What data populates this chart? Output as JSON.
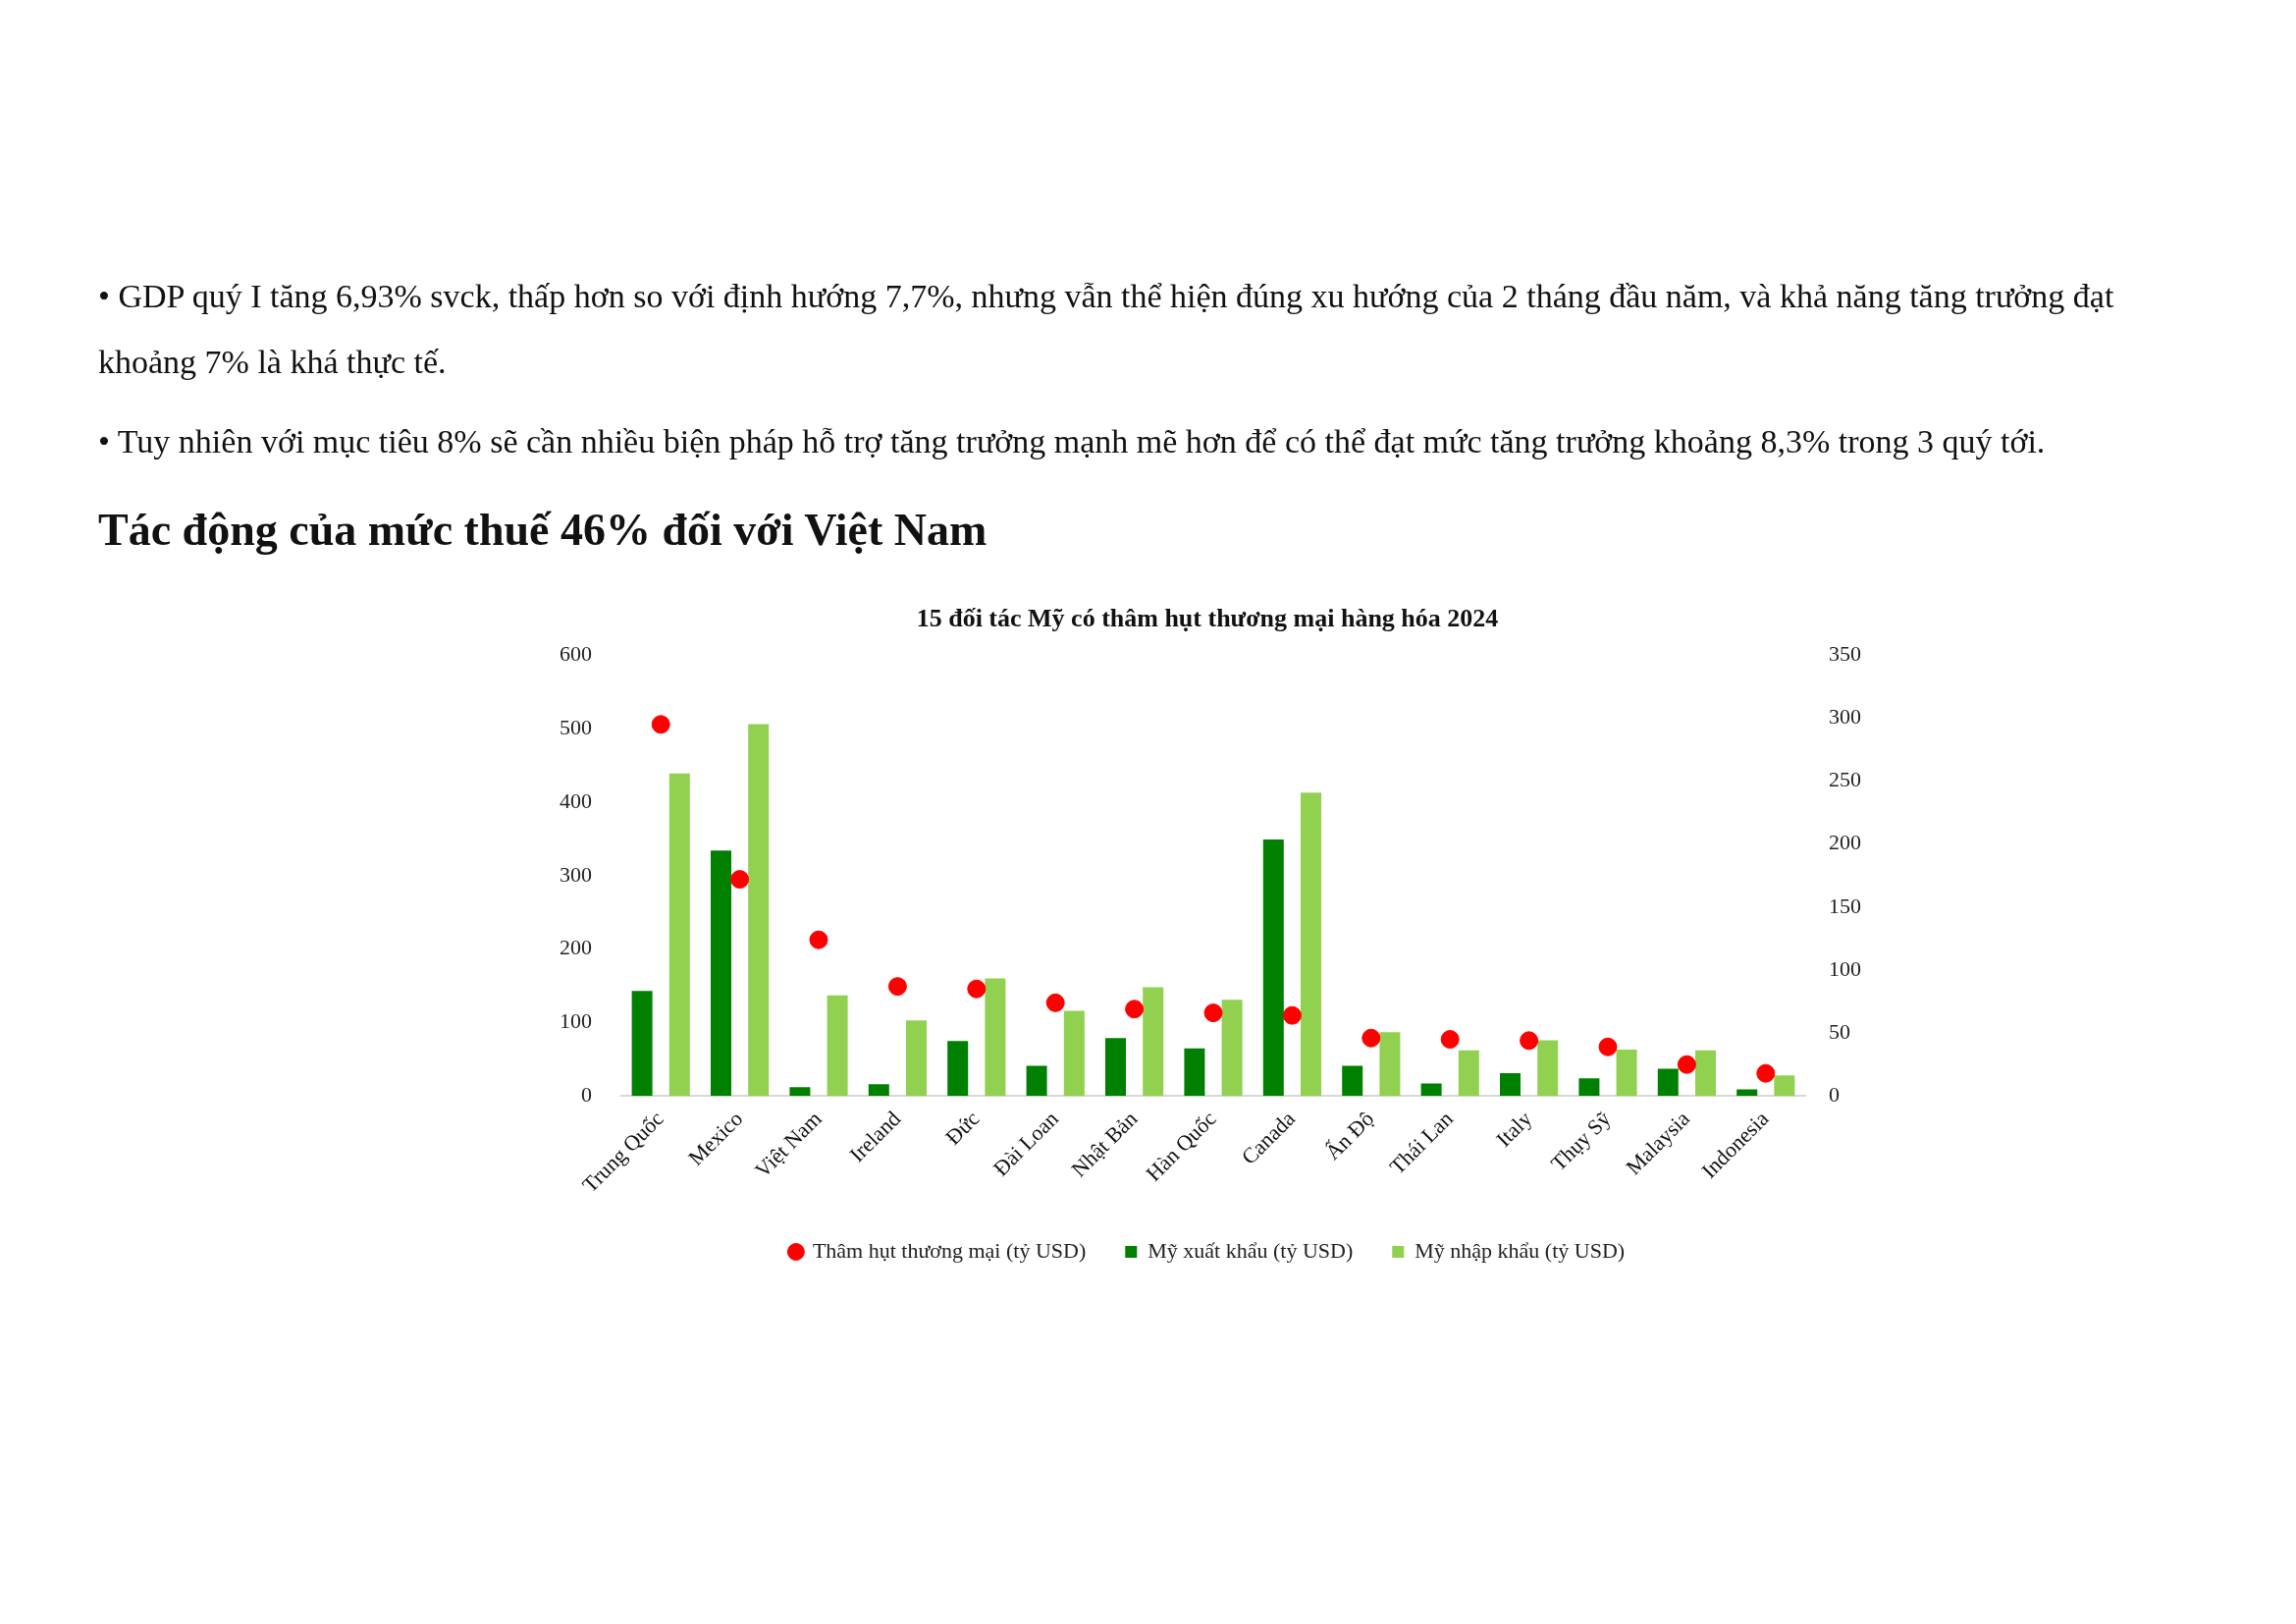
{
  "chart_data": {
    "type": "bar",
    "title": "15 đối tác Mỹ có thâm hụt thương mại hàng hóa 2024",
    "annotations": [
      "• GDP quý I tăng 6,93% svck, thấp hơn so với định hướng 7,7%, nhưng vẫn thể hiện đúng xu hướng của 2 tháng đầu năm, và khả năng tăng trưởng đạt khoảng 7% là khá thực tế.",
      "• Tuy nhiên với mục tiêu 8% sẽ cần nhiều biện pháp hỗ trợ tăng trưởng mạnh mẽ hơn để có thể đạt mức tăng trưởng khoảng 8,3% trong 3 quý tới.",
      "Tác động của mức thuế 46% đối với Việt Nam"
    ],
    "categories": [
      "Trung Quốc",
      "Mexico",
      "Việt Nam",
      "Ireland",
      "Đức",
      "Đài Loan",
      "Nhật Bản",
      "Hàn Quốc",
      "Canada",
      "Ấn Độ",
      "Thái Lan",
      "Italy",
      "Thụy Sỹ",
      "Malaysia",
      "Indonesia"
    ],
    "series": [
      {
        "name": "Mỹ xuất khẩu (tỷ USD)",
        "color": "#008000",
        "values": [
          143,
          334,
          12,
          16,
          75,
          41,
          79,
          65,
          349,
          41,
          17,
          31,
          24,
          37,
          9
        ]
      },
      {
        "name": "Mỹ nhập khẩu (tỷ USD)",
        "color": "#92d050",
        "values": [
          439,
          506,
          137,
          103,
          160,
          116,
          148,
          131,
          413,
          87,
          62,
          76,
          63,
          62,
          28
        ]
      },
      {
        "name": "Thâm hụt thương mại (tỷ USD)",
        "type": "scatter",
        "axis": "y2",
        "color": "#ff0000",
        "values": [
          295,
          172,
          124,
          87,
          85,
          74,
          69,
          66,
          64,
          46,
          45,
          44,
          39,
          25,
          18
        ]
      }
    ],
    "ylim": [
      0,
      600
    ],
    "yticks": [
      0,
      100,
      200,
      300,
      400,
      500,
      600
    ],
    "y2lim": [
      0,
      350
    ],
    "y2ticks": [
      0,
      50,
      100,
      150,
      200,
      250,
      300,
      350
    ],
    "grid": false,
    "legend": "bottom",
    "marker": "circle"
  }
}
